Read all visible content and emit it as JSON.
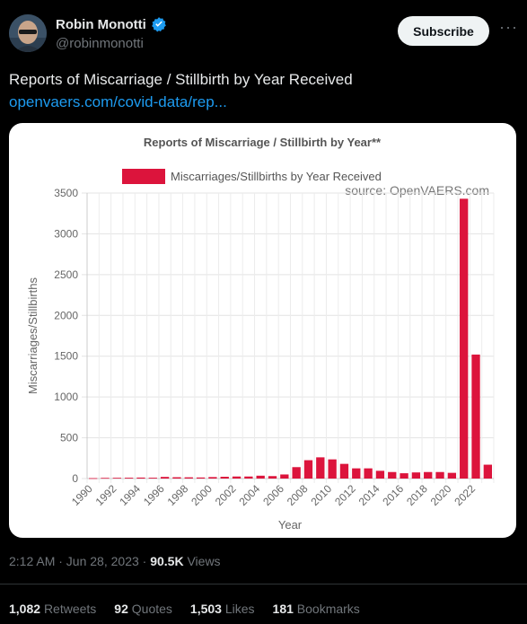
{
  "author": {
    "name": "Robin Monotti",
    "handle": "@robinmonotti"
  },
  "subscribe_label": "Subscribe",
  "more_label": "···",
  "tweet": {
    "text": "Reports of Miscarriage / Stillbirth by Year Received",
    "link": "openvaers.com/covid-data/rep..."
  },
  "meta": {
    "time": "2:12 AM · Jun 28, 2023 · ",
    "views": "90.5K",
    "views_label": " Views"
  },
  "stats": {
    "retweets": {
      "count": "1,082",
      "label": "Retweets"
    },
    "quotes": {
      "count": "92",
      "label": "Quotes"
    },
    "likes": {
      "count": "1,503",
      "label": "Likes"
    },
    "bookmarks": {
      "count": "181",
      "label": "Bookmarks"
    }
  },
  "colors": {
    "bar": "#dc143c",
    "link": "#1d9bf0",
    "verified": "#1d9bf0"
  },
  "icons": {
    "verified": "verified-badge-icon",
    "more": "more-options-icon"
  },
  "chart_data": {
    "type": "bar",
    "title": "Reports of Miscarriage / Stillbirth by Year**",
    "legend": "Miscarriages/Stillbirths by Year Received",
    "source": "source: OpenVAERS.com",
    "xlabel": "Year",
    "ylabel": "Miscarriages/Stillbirths",
    "ylim": [
      0,
      3500
    ],
    "yticks": [
      0,
      500,
      1000,
      1500,
      2000,
      2500,
      3000,
      3500
    ],
    "categories": [
      "1990",
      "1991",
      "1992",
      "1993",
      "1994",
      "1995",
      "1996",
      "1997",
      "1998",
      "1999",
      "2000",
      "2001",
      "2002",
      "2003",
      "2004",
      "2005",
      "2006",
      "2007",
      "2008",
      "2009",
      "2010",
      "2011",
      "2012",
      "2013",
      "2014",
      "2015",
      "2016",
      "2017",
      "2018",
      "2019",
      "2020",
      "2021",
      "2022",
      "2023"
    ],
    "xtick_labels": [
      "1990",
      "1992",
      "1994",
      "1996",
      "1998",
      "2000",
      "2002",
      "2004",
      "2006",
      "2008",
      "2010",
      "2012",
      "2014",
      "2016",
      "2018",
      "2020",
      "2022"
    ],
    "values": [
      5,
      8,
      9,
      10,
      12,
      10,
      20,
      16,
      15,
      13,
      18,
      22,
      25,
      25,
      35,
      30,
      50,
      140,
      225,
      260,
      235,
      180,
      125,
      125,
      95,
      80,
      65,
      75,
      80,
      80,
      70,
      3430,
      1520,
      170
    ],
    "grid": true,
    "legend_position": "top"
  }
}
